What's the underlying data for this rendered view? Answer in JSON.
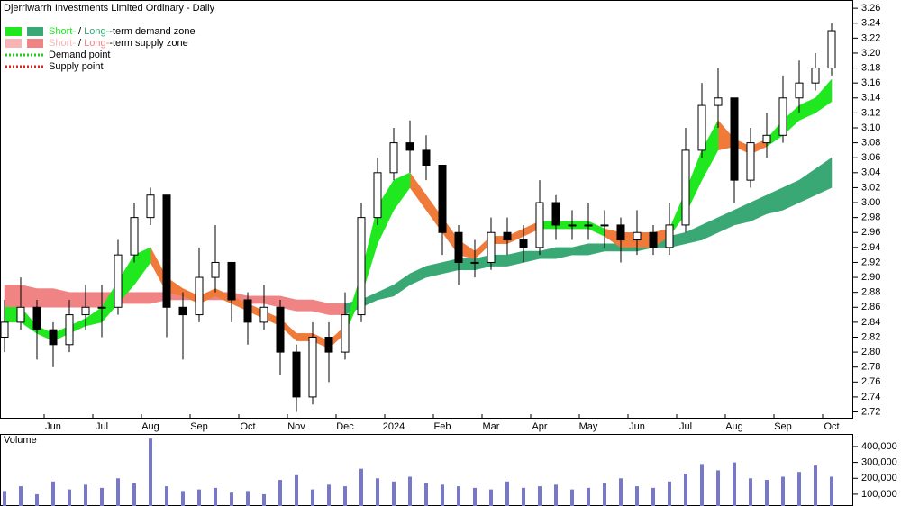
{
  "chart_data": {
    "type": "candlestick",
    "title": "Djerriwarrh Investments Limited Ordinary - Daily",
    "categories": [
      null,
      null,
      null,
      "Jun",
      null,
      null,
      "Jul",
      null,
      null,
      "Aug",
      null,
      null,
      "Sep",
      null,
      null,
      "Oct",
      null,
      null,
      "Nov",
      null,
      null,
      "Dec",
      null,
      null,
      "2024",
      null,
      null,
      "Feb",
      null,
      null,
      "Mar",
      null,
      null,
      "Apr",
      null,
      null,
      "May",
      null,
      null,
      "Jun",
      null,
      null,
      "Jul",
      null,
      null,
      "Aug",
      null,
      null,
      "Sep",
      null,
      null,
      "Oct"
    ],
    "open": [
      2.82,
      2.84,
      2.86,
      2.83,
      2.81,
      2.85,
      2.86,
      2.86,
      2.93,
      2.98,
      3.01,
      2.86,
      2.85,
      2.9,
      2.92,
      2.87,
      2.84,
      2.86,
      2.8,
      2.74,
      2.82,
      2.8,
      2.85,
      2.98,
      3.04,
      3.08,
      3.07,
      3.05,
      2.96,
      2.92,
      2.92,
      2.96,
      2.95,
      2.94,
      3.0,
      2.97,
      2.97,
      2.97,
      2.97,
      2.95,
      2.96,
      2.94,
      2.97,
      3.07,
      3.13,
      3.14,
      3.03,
      3.08,
      3.09,
      3.14,
      3.16,
      3.18
    ],
    "high": [
      2.87,
      2.9,
      2.87,
      2.84,
      2.87,
      2.89,
      2.89,
      2.95,
      3.0,
      3.02,
      3.01,
      2.88,
      2.94,
      2.97,
      2.92,
      2.88,
      2.89,
      2.87,
      2.81,
      2.84,
      2.84,
      2.88,
      3.0,
      3.06,
      3.1,
      3.11,
      3.09,
      3.05,
      2.97,
      2.95,
      2.98,
      2.98,
      2.97,
      3.03,
      3.01,
      2.99,
      3.0,
      2.99,
      2.98,
      2.99,
      2.97,
      3.0,
      3.1,
      3.16,
      3.18,
      3.14,
      3.1,
      3.12,
      3.17,
      3.19,
      3.2,
      3.24
    ],
    "low": [
      2.8,
      2.83,
      2.79,
      2.78,
      2.8,
      2.83,
      2.82,
      2.85,
      2.92,
      2.97,
      2.82,
      2.79,
      2.84,
      2.88,
      2.84,
      2.81,
      2.83,
      2.77,
      2.72,
      2.73,
      2.76,
      2.79,
      2.84,
      2.97,
      3.03,
      3.04,
      3.03,
      2.93,
      2.89,
      2.9,
      2.91,
      2.93,
      2.92,
      2.93,
      2.95,
      2.95,
      2.95,
      2.94,
      2.92,
      2.93,
      2.93,
      2.93,
      2.96,
      3.06,
      3.1,
      3.0,
      3.02,
      3.06,
      3.08,
      3.12,
      3.15,
      3.17
    ],
    "close": [
      2.84,
      2.86,
      2.83,
      2.81,
      2.85,
      2.86,
      2.86,
      2.93,
      2.98,
      3.01,
      2.86,
      2.85,
      2.9,
      2.92,
      2.87,
      2.84,
      2.86,
      2.8,
      2.74,
      2.82,
      2.8,
      2.85,
      2.98,
      3.04,
      3.08,
      3.07,
      3.05,
      2.96,
      2.92,
      2.92,
      2.96,
      2.95,
      2.94,
      3.0,
      2.97,
      2.97,
      2.97,
      2.97,
      2.95,
      2.96,
      2.94,
      2.97,
      3.07,
      3.13,
      3.14,
      3.03,
      3.08,
      3.09,
      3.14,
      3.16,
      3.18,
      3.23
    ],
    "zones": [
      {
        "color": "#f08484",
        "upper": [
          2.89,
          2.89,
          2.885,
          2.885,
          2.88,
          2.88,
          2.88,
          2.88,
          2.88,
          2.88,
          2.88,
          2.88,
          2.875,
          2.88,
          2.88,
          2.875,
          2.875,
          2.875,
          2.87,
          2.87,
          2.865,
          2.865,
          null,
          null,
          null,
          null,
          null,
          null,
          null,
          null,
          null,
          null,
          null,
          null,
          null,
          null,
          null,
          null,
          null,
          null,
          null,
          null,
          null,
          null,
          null,
          null,
          null,
          null,
          null,
          null,
          null,
          null
        ],
        "lower": [
          2.86,
          2.86,
          2.86,
          2.86,
          2.86,
          2.86,
          2.86,
          2.865,
          2.865,
          2.865,
          2.87,
          2.87,
          2.87,
          2.87,
          2.87,
          2.865,
          2.865,
          2.86,
          2.855,
          2.855,
          2.85,
          2.85,
          null,
          null,
          null,
          null,
          null,
          null,
          null,
          null,
          null,
          null,
          null,
          null,
          null,
          null,
          null,
          null,
          null,
          null,
          null,
          null,
          null,
          null,
          null,
          null,
          null,
          null,
          null,
          null,
          null,
          null
        ]
      },
      {
        "color": "#3aa874",
        "upper": [
          null,
          null,
          null,
          null,
          null,
          null,
          null,
          null,
          null,
          null,
          null,
          null,
          null,
          null,
          null,
          null,
          null,
          null,
          null,
          null,
          null,
          2.865,
          2.87,
          2.88,
          2.89,
          2.905,
          2.915,
          2.92,
          2.925,
          2.925,
          2.93,
          2.93,
          2.935,
          2.935,
          2.94,
          2.94,
          2.945,
          2.945,
          2.945,
          2.95,
          2.95,
          2.955,
          2.96,
          2.97,
          2.98,
          2.99,
          3.0,
          3.01,
          3.02,
          3.03,
          3.045,
          3.06
        ],
        "lower": [
          null,
          null,
          null,
          null,
          null,
          null,
          null,
          null,
          null,
          null,
          null,
          null,
          null,
          null,
          null,
          null,
          null,
          null,
          null,
          null,
          null,
          2.85,
          2.86,
          2.87,
          2.875,
          2.89,
          2.9,
          2.905,
          2.91,
          2.91,
          2.915,
          2.915,
          2.92,
          2.925,
          2.925,
          2.93,
          2.93,
          2.935,
          2.935,
          2.935,
          2.94,
          2.94,
          2.945,
          2.95,
          2.96,
          2.97,
          2.975,
          2.985,
          2.99,
          3.0,
          3.01,
          3.02
        ]
      },
      {
        "color": "#f07a3a",
        "upper": [
          null,
          null,
          null,
          null,
          null,
          null,
          null,
          null,
          null,
          2.94,
          2.9,
          2.885,
          2.875,
          2.885,
          2.875,
          2.865,
          2.855,
          2.845,
          2.825,
          2.825,
          2.815,
          2.835,
          null,
          null,
          null,
          3.04,
          3.01,
          2.98,
          2.95,
          2.935,
          2.955,
          2.955,
          2.965,
          2.975,
          null,
          null,
          null,
          2.965,
          2.96,
          2.96,
          2.96,
          2.965,
          null,
          null,
          3.11,
          3.085,
          3.075,
          3.085,
          null,
          null,
          null,
          null
        ],
        "lower": [
          null,
          null,
          null,
          null,
          null,
          null,
          null,
          null,
          null,
          2.92,
          2.88,
          2.875,
          2.865,
          2.875,
          2.865,
          2.855,
          2.845,
          2.835,
          2.815,
          2.815,
          2.805,
          2.825,
          null,
          null,
          null,
          3.02,
          2.99,
          2.96,
          2.93,
          2.925,
          2.945,
          2.945,
          2.955,
          2.965,
          null,
          null,
          null,
          2.955,
          2.94,
          2.94,
          2.94,
          2.955,
          null,
          null,
          3.07,
          3.075,
          3.065,
          3.075,
          null,
          null,
          null,
          null
        ]
      },
      {
        "color": "#1fe81f",
        "upper": [
          2.86,
          2.86,
          2.835,
          2.825,
          2.835,
          2.845,
          2.86,
          2.895,
          2.93,
          2.94,
          null,
          null,
          null,
          null,
          null,
          null,
          null,
          null,
          null,
          null,
          null,
          2.835,
          2.905,
          2.995,
          3.03,
          3.04,
          null,
          null,
          null,
          null,
          null,
          null,
          null,
          2.975,
          2.975,
          2.975,
          2.975,
          2.965,
          null,
          null,
          null,
          2.965,
          3.015,
          3.07,
          3.11,
          null,
          null,
          3.085,
          3.11,
          3.13,
          3.14,
          3.165
        ],
        "lower": [
          2.84,
          2.84,
          2.825,
          2.815,
          2.825,
          2.835,
          2.84,
          2.865,
          2.89,
          2.92,
          null,
          null,
          null,
          null,
          null,
          null,
          null,
          null,
          null,
          null,
          null,
          2.825,
          2.875,
          2.945,
          2.99,
          3.02,
          null,
          null,
          null,
          null,
          null,
          null,
          null,
          2.965,
          2.965,
          2.965,
          2.965,
          2.955,
          null,
          null,
          null,
          2.955,
          2.985,
          3.03,
          3.07,
          null,
          null,
          3.075,
          3.09,
          3.11,
          3.12,
          3.135
        ]
      }
    ],
    "ylim": [
      2.711,
      3.271
    ],
    "yticks": [
      2.72,
      2.74,
      2.76,
      2.78,
      {
        "value": 2.8,
        "label": "2.80"
      },
      2.82,
      2.84,
      2.86,
      2.88,
      {
        "value": 2.9,
        "label": "2.90"
      },
      2.92,
      2.94,
      2.96,
      2.98,
      {
        "value": 3,
        "label": "3.00"
      },
      3.02,
      3.04,
      3.06,
      3.08,
      {
        "value": 3.1,
        "label": "3.10"
      },
      3.12,
      3.14,
      3.16,
      3.18,
      {
        "value": 3.2,
        "label": "3.20"
      },
      3.22,
      3.24,
      3.26
    ],
    "legend": [
      {
        "parts": [
          "Short-",
          " / ",
          "Long-",
          "-term demand zone"
        ],
        "colors": [
          "#1fe81f",
          "#3aa874"
        ]
      },
      {
        "parts": [
          "Short-",
          " / ",
          "Long-",
          "-term supply zone"
        ],
        "colors": [
          "#f8b4b4",
          "#f08484"
        ]
      },
      {
        "label": "Demand point",
        "color": "#22cc22"
      },
      {
        "label": "Supply point",
        "color": "#dd2222"
      }
    ],
    "volume": {
      "title": "Volume",
      "color": "#7777cc",
      "values": [
        120000,
        150000,
        100000,
        180000,
        130000,
        160000,
        140000,
        200000,
        170000,
        450000,
        150000,
        120000,
        130000,
        140000,
        110000,
        120000,
        100000,
        190000,
        220000,
        130000,
        160000,
        150000,
        260000,
        200000,
        180000,
        210000,
        170000,
        160000,
        150000,
        140000,
        130000,
        180000,
        140000,
        150000,
        160000,
        130000,
        140000,
        170000,
        200000,
        150000,
        140000,
        180000,
        230000,
        290000,
        250000,
        300000,
        200000,
        190000,
        210000,
        240000,
        280000,
        210000
      ],
      "ylim": [
        26000,
        479000
      ],
      "yticks": [
        {
          "value": 100000,
          "label": "100,000"
        },
        {
          "value": 200000,
          "label": "200,000"
        },
        {
          "value": 300000,
          "label": "300,000"
        },
        {
          "value": 400000,
          "label": "400,000"
        }
      ]
    }
  }
}
